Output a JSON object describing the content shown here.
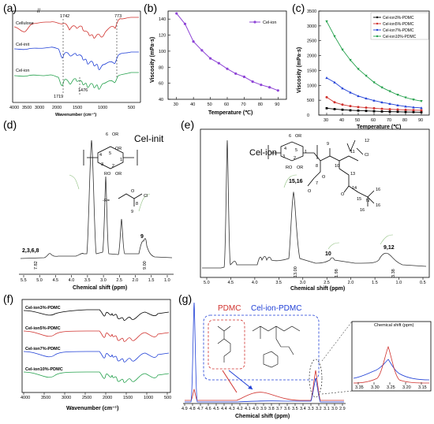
{
  "panels": {
    "a": {
      "letter": "(a)",
      "xlabel": "Wavenumber (cm⁻¹)",
      "xticks": [
        "4000",
        "3500",
        "3000",
        "2000",
        "1500",
        "1000",
        "500"
      ],
      "curve_labels": [
        "Cellulose",
        "Cel-init",
        "Cel-ion"
      ],
      "peak_labels": [
        "1742",
        "773",
        "1719",
        "1476"
      ]
    },
    "b": {
      "letter": "(b)",
      "xlabel": "Temperature (℃)",
      "ylabel": "Viscosity (mPa·s)",
      "legend": "Cel-ion",
      "xticks": [
        "30",
        "40",
        "50",
        "60",
        "70",
        "80",
        "90"
      ],
      "yticks": [
        "40",
        "60",
        "80",
        "100",
        "120",
        "140"
      ]
    },
    "c": {
      "letter": "(c)",
      "xlabel": "Temperature (℃)",
      "ylabel": "Viscosity (mPa·s)",
      "xticks": [
        "30",
        "40",
        "50",
        "60",
        "70",
        "80",
        "90"
      ],
      "yticks": [
        "0",
        "500",
        "1000",
        "1500",
        "2000",
        "2500",
        "3000",
        "3500"
      ],
      "legend": [
        "Cel-ion3%-PDMC",
        "Cel-ion5%-PDMC",
        "Cel-ion7%-PDMC",
        "Cel-ion10%-PDMC"
      ]
    },
    "d": {
      "letter": "(d)",
      "title": "Cel-init",
      "xlabel": "Chemical shift (ppm)",
      "xticks": [
        "5.5",
        "5.0",
        "4.5",
        "4.0",
        "3.5",
        "3.0",
        "2.5",
        "2.0",
        "1.5",
        "1.0"
      ],
      "peak_labels": [
        "2,3,6,8",
        "9"
      ],
      "integrals": [
        "7.82",
        "9.00"
      ],
      "struct_labels": [
        "-R=",
        "6",
        "OR",
        "OR",
        "RO",
        "OR",
        "4",
        "5",
        "1",
        "3",
        "2",
        "O",
        "8",
        "9",
        "Cl"
      ]
    },
    "e": {
      "letter": "(e)",
      "title": "Cel-ion",
      "xlabel": "Chemical shift (ppm)",
      "xticks": [
        "5.0",
        "4.5",
        "4.0",
        "3.5",
        "3.0",
        "2.5",
        "2.0",
        "1.5",
        "1.0",
        "0.5"
      ],
      "peak_labels": [
        "15,16",
        "10",
        "9,12"
      ],
      "integrals": [
        "13.00",
        "1.98",
        "3.38"
      ],
      "struct_labels": [
        "6",
        "OR",
        "4",
        "5",
        "1",
        "3",
        "2",
        "RO",
        "OR",
        "9",
        "8",
        "11",
        "12",
        "10",
        "Cl",
        "7",
        "O",
        "13",
        "14",
        "15",
        "N",
        "16",
        "16",
        "16",
        "O",
        "O"
      ]
    },
    "f": {
      "letter": "(f)",
      "xlabel": "Wavenumber (cm⁻¹)",
      "xticks": [
        "4000",
        "3500",
        "3000",
        "2500",
        "2000",
        "1500",
        "1000",
        "500"
      ],
      "curve_labels": [
        "Cel-ion3%-PDMC",
        "Cel-ion5%-PDMC",
        "Cel-ion7%-PDMC",
        "Cel-ion10%-PDMC"
      ]
    },
    "g": {
      "letter": "(g)",
      "legend_pdmc": "PDMC",
      "legend_cel": "Cel-ion-PDMC",
      "xlabel": "Chemical shift (ppm)",
      "xticks": [
        "4.9",
        "4.8",
        "4.7",
        "4.6",
        "4.5",
        "4.4",
        "4.3",
        "4.2",
        "4.1",
        "4.0",
        "3.9",
        "3.8",
        "3.7",
        "3.6",
        "3.5",
        "3.4",
        "3.3",
        "3.2",
        "3.1",
        "3.0",
        "2.9"
      ],
      "inset_xlabel": "Chemical shift (ppm)",
      "inset_xticks": [
        "3.35",
        "3.30",
        "3.25",
        "3.20",
        "3.15"
      ]
    }
  },
  "chart_data": [
    {
      "type": "line",
      "title": "",
      "xlabel": "Temperature (℃)",
      "ylabel": "Viscosity (mPa·s)",
      "xlim": [
        25,
        95
      ],
      "ylim": [
        40,
        150
      ],
      "series": [
        {
          "name": "Cel-ion",
          "color": "#8e44d6",
          "x": [
            30,
            35,
            40,
            45,
            50,
            55,
            60,
            65,
            70,
            75,
            80,
            85,
            90
          ],
          "y": [
            147,
            134,
            112,
            101,
            91,
            85,
            78,
            72,
            68,
            62,
            58,
            55,
            51
          ]
        }
      ]
    },
    {
      "type": "line",
      "title": "",
      "xlabel": "Temperature (℃)",
      "ylabel": "Viscosity (mPa·s)",
      "xlim": [
        25,
        95
      ],
      "ylim": [
        0,
        3500
      ],
      "series": [
        {
          "name": "Cel-ion3%-PDMC",
          "color": "#000000",
          "x": [
            30,
            35,
            40,
            45,
            50,
            55,
            60,
            65,
            70,
            75,
            80,
            85,
            90
          ],
          "y": [
            230,
            200,
            180,
            160,
            150,
            140,
            130,
            120,
            115,
            110,
            105,
            100,
            95
          ]
        },
        {
          "name": "Cel-ion5%-PDMC",
          "color": "#d0312d",
          "x": [
            30,
            35,
            40,
            45,
            50,
            55,
            60,
            65,
            70,
            75,
            80,
            85,
            90
          ],
          "y": [
            600,
            430,
            350,
            300,
            270,
            250,
            230,
            210,
            195,
            185,
            175,
            165,
            160
          ]
        },
        {
          "name": "Cel-ion7%-PDMC",
          "color": "#1f3fd6",
          "x": [
            30,
            35,
            40,
            45,
            50,
            55,
            60,
            65,
            70,
            75,
            80,
            85,
            90
          ],
          "y": [
            1250,
            1100,
            900,
            760,
            640,
            560,
            490,
            430,
            380,
            330,
            290,
            260,
            240
          ]
        },
        {
          "name": "Cel-ion10%-PDMC",
          "color": "#23a04b",
          "x": [
            30,
            35,
            40,
            45,
            50,
            55,
            60,
            65,
            70,
            75,
            80,
            85,
            90
          ],
          "y": [
            3150,
            2650,
            2200,
            1850,
            1550,
            1320,
            1100,
            930,
            800,
            680,
            590,
            520,
            470
          ]
        }
      ]
    }
  ],
  "colors": {
    "black": "#000000",
    "red": "#d0312d",
    "blue": "#1f3fd6",
    "green": "#23a04b",
    "purple": "#8e44d6",
    "grey": "#555555"
  }
}
